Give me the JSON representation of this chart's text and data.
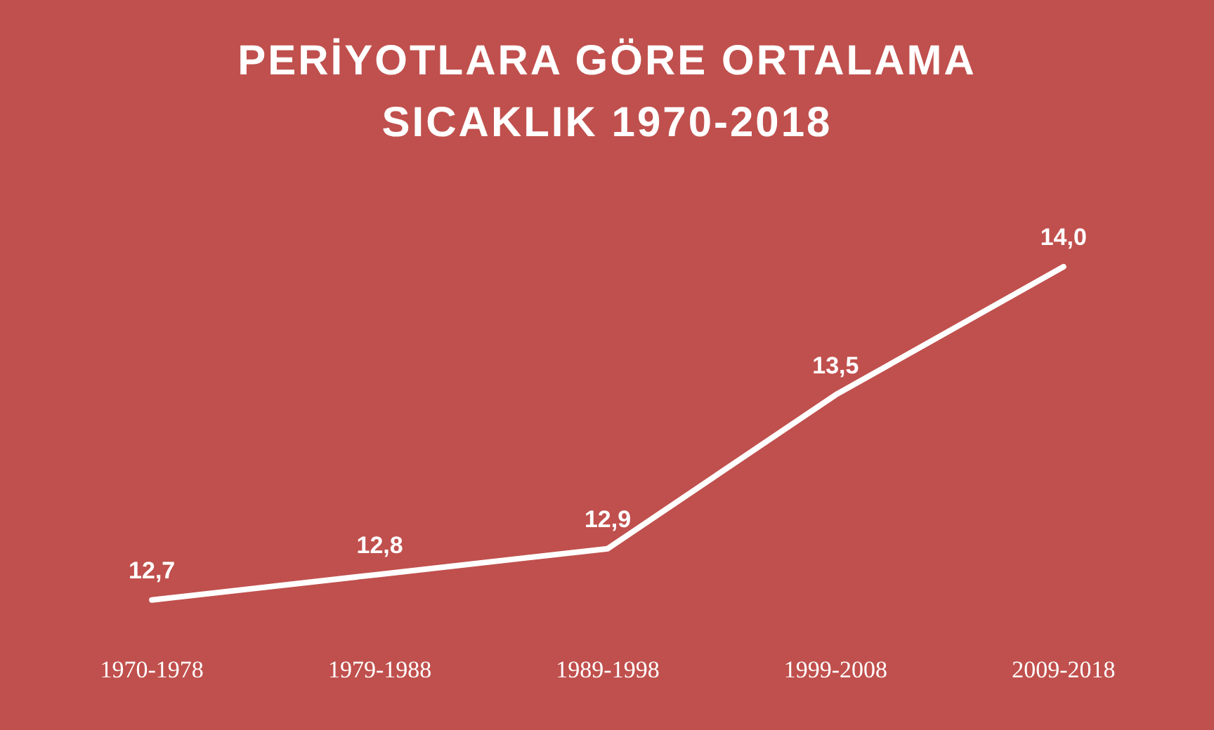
{
  "chart_data": {
    "type": "line",
    "title": "PERİYOTLARA GÖRE ORTALAMA SICAKLIK 1970-2018",
    "categories": [
      "1970-1978",
      "1979-1988",
      "1989-1998",
      "1999-2008",
      "2009-2018"
    ],
    "series": [
      {
        "color": "#ffffff",
        "values": [
          12.7,
          12.8,
          12.9,
          13.5,
          14.0
        ],
        "value_labels": [
          "12,7",
          "12,8",
          "12,9",
          "13,5",
          "14,0"
        ]
      }
    ],
    "tick_labels": "x",
    "grid": false,
    "legend": false,
    "marker": "none",
    "line_style": "solid"
  }
}
